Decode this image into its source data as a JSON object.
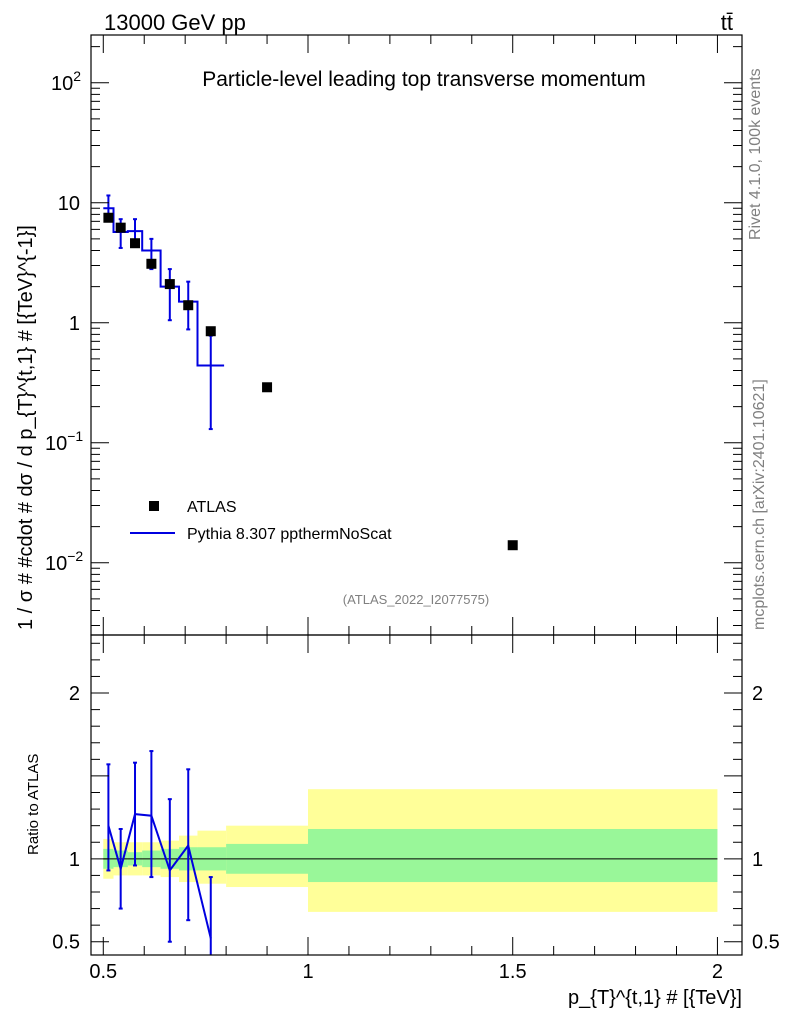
{
  "header": {
    "energy_label": "13000 GeV pp",
    "process_label": "tt̄",
    "rivet_label": "Rivet 4.1.0,  100k events",
    "source_label": "mcplots.cern.ch [arXiv:2401.10621]"
  },
  "chart_data": [
    {
      "panel": "main",
      "type": "line",
      "title": "Particle-level leading top transverse momentum",
      "watermark": "(ATLAS_2022_I2077575)",
      "ylabel": "1 / σ # #cdot # dσ / d p_{T}^{t,1} # [{TeV}^{-1}]",
      "yscale": "log",
      "ylim": [
        0.0025,
        250
      ],
      "xlim": [
        0.47,
        2.06
      ],
      "y_ticks": [
        {
          "value": 0.01,
          "base": "10",
          "exp": "−2"
        },
        {
          "value": 0.1,
          "base": "10",
          "exp": "−1"
        },
        {
          "value": 1,
          "base": "1",
          "exp": ""
        },
        {
          "value": 10,
          "base": "10",
          "exp": ""
        },
        {
          "value": 100,
          "base": "10",
          "exp": "2"
        }
      ],
      "legend": {
        "position": "bottom-left",
        "entries": [
          {
            "label": "ATLAS",
            "marker": "square",
            "color": "#000000"
          },
          {
            "label": "Pythia 8.307 ppthermNoScat",
            "marker": "line",
            "color": "#0000e0"
          }
        ]
      },
      "series": [
        {
          "name": "ATLAS",
          "color": "#000000",
          "bins": [
            {
              "x": 0.5125,
              "y": 7.5
            },
            {
              "x": 0.5425,
              "y": 6.2
            },
            {
              "x": 0.5775,
              "y": 4.6
            },
            {
              "x": 0.6175,
              "y": 3.1
            },
            {
              "x": 0.6625,
              "y": 2.1
            },
            {
              "x": 0.7075,
              "y": 1.4
            },
            {
              "x": 0.7625,
              "y": 0.85
            },
            {
              "x": 0.9,
              "y": 0.29
            },
            {
              "x": 1.5,
              "y": 0.014
            }
          ]
        },
        {
          "name": "Pythia 8.307 ppthermNoScat",
          "color": "#0000e0",
          "bins": [
            {
              "xlow": 0.5,
              "xhigh": 0.525,
              "x": 0.5125,
              "y": 9.0,
              "ylow": 7.0,
              "yhigh": 11.5
            },
            {
              "xlow": 0.525,
              "xhigh": 0.56,
              "x": 0.5425,
              "y": 5.7,
              "ylow": 4.2,
              "yhigh": 7.3
            },
            {
              "xlow": 0.56,
              "xhigh": 0.595,
              "x": 0.5775,
              "y": 5.8,
              "ylow": 4.5,
              "yhigh": 7.3
            },
            {
              "xlow": 0.595,
              "xhigh": 0.64,
              "x": 0.6175,
              "y": 4.0,
              "ylow": 2.8,
              "yhigh": 5.0
            },
            {
              "xlow": 0.64,
              "xhigh": 0.685,
              "x": 0.6625,
              "y": 2.0,
              "ylow": 1.05,
              "yhigh": 2.8
            },
            {
              "xlow": 0.685,
              "xhigh": 0.73,
              "x": 0.7075,
              "y": 1.5,
              "ylow": 0.88,
              "yhigh": 2.2
            },
            {
              "xlow": 0.73,
              "xhigh": 0.795,
              "x": 0.7625,
              "y": 0.44,
              "ylow": 0.13,
              "yhigh": 0.78
            }
          ]
        }
      ]
    },
    {
      "panel": "ratio",
      "type": "line",
      "ylabel": "Ratio to ATLAS",
      "xlabel": "p_{T}^{t,1} # [{TeV}]",
      "ylim": [
        0.42,
        2.35
      ],
      "xlim": [
        0.47,
        2.06
      ],
      "x_ticks": [
        "0.5",
        "1",
        "1.5",
        "2"
      ],
      "y_ticks": [
        "0.5",
        "1",
        "2"
      ],
      "reference_line": 1.0,
      "bands": [
        {
          "xlow": 0.5,
          "xhigh": 0.525,
          "inner": [
            0.94,
            1.06
          ],
          "outer": [
            0.88,
            1.12
          ]
        },
        {
          "xlow": 0.525,
          "xhigh": 0.56,
          "inner": [
            0.95,
            1.05
          ],
          "outer": [
            0.9,
            1.1
          ]
        },
        {
          "xlow": 0.56,
          "xhigh": 0.595,
          "inner": [
            0.96,
            1.04
          ],
          "outer": [
            0.9,
            1.1
          ]
        },
        {
          "xlow": 0.595,
          "xhigh": 0.64,
          "inner": [
            0.95,
            1.05
          ],
          "outer": [
            0.9,
            1.1
          ]
        },
        {
          "xlow": 0.64,
          "xhigh": 0.685,
          "inner": [
            0.94,
            1.06
          ],
          "outer": [
            0.89,
            1.11
          ]
        },
        {
          "xlow": 0.685,
          "xhigh": 0.73,
          "inner": [
            0.93,
            1.07
          ],
          "outer": [
            0.86,
            1.14
          ]
        },
        {
          "xlow": 0.73,
          "xhigh": 0.8,
          "inner": [
            0.93,
            1.07
          ],
          "outer": [
            0.85,
            1.17
          ]
        },
        {
          "xlow": 0.8,
          "xhigh": 1.0,
          "inner": [
            0.91,
            1.09
          ],
          "outer": [
            0.83,
            1.2
          ]
        },
        {
          "xlow": 1.0,
          "xhigh": 2.0,
          "inner": [
            0.86,
            1.18
          ],
          "outer": [
            0.68,
            1.42
          ]
        }
      ],
      "series": [
        {
          "name": "Pythia 8.307 ppthermNoScat / ATLAS",
          "color": "#0000e0",
          "bins": [
            {
              "x": 0.5125,
              "y": 1.2,
              "ylow": 0.93,
              "yhigh": 1.57
            },
            {
              "x": 0.5425,
              "y": 0.94,
              "ylow": 0.7,
              "yhigh": 1.18
            },
            {
              "x": 0.5775,
              "y": 1.27,
              "ylow": 0.96,
              "yhigh": 1.58
            },
            {
              "x": 0.6175,
              "y": 1.26,
              "ylow": 0.89,
              "yhigh": 1.65
            },
            {
              "x": 0.6625,
              "y": 0.93,
              "ylow": 0.5,
              "yhigh": 1.36
            },
            {
              "x": 0.7075,
              "y": 1.08,
              "ylow": 0.63,
              "yhigh": 1.54
            },
            {
              "x": 0.7625,
              "y": 0.52,
              "ylow": 0.4,
              "yhigh": 0.89
            }
          ]
        }
      ]
    }
  ]
}
